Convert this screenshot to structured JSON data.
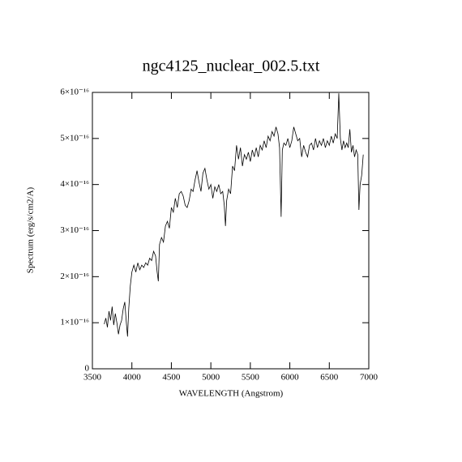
{
  "chart_data": {
    "type": "line",
    "title": "ngc4125_nuclear_002.5.txt",
    "x_label": "WAVELENGTH (Angstrom)",
    "y_label": "Spectrum (erg/s/cm2/A)",
    "xlim": [
      3500,
      7000
    ],
    "xticks": [
      3500,
      4000,
      4500,
      5000,
      5500,
      6000,
      6500,
      7000
    ],
    "ylim": [
      0,
      6e-16
    ],
    "yticks": [
      0,
      {
        "value": 1e-16,
        "label": "1×10⁻¹⁶"
      },
      {
        "value": 2e-16,
        "label": "2×10⁻¹⁶"
      },
      {
        "value": 3e-16,
        "label": "3×10⁻¹⁶"
      },
      {
        "value": 4e-16,
        "label": "4×10⁻¹⁶"
      },
      {
        "value": 5e-16,
        "label": "5×10⁻¹⁶"
      },
      {
        "value": 6e-16,
        "label": "6×10⁻¹⁶"
      }
    ],
    "color": "#000000",
    "x": [
      3650,
      3670,
      3690,
      3710,
      3730,
      3750,
      3770,
      3790,
      3810,
      3830,
      3850,
      3870,
      3890,
      3910,
      3930,
      3945,
      3960,
      3980,
      4000,
      4025,
      4050,
      4075,
      4100,
      4125,
      4150,
      4175,
      4200,
      4225,
      4250,
      4275,
      4300,
      4320,
      4335,
      4350,
      4375,
      4400,
      4425,
      4450,
      4475,
      4500,
      4525,
      4550,
      4575,
      4600,
      4625,
      4650,
      4675,
      4700,
      4725,
      4750,
      4775,
      4800,
      4825,
      4850,
      4875,
      4900,
      4925,
      4950,
      4975,
      5000,
      5025,
      5050,
      5075,
      5100,
      5125,
      5150,
      5170,
      5185,
      5200,
      5225,
      5250,
      5275,
      5300,
      5325,
      5350,
      5375,
      5400,
      5425,
      5450,
      5475,
      5500,
      5525,
      5550,
      5575,
      5600,
      5625,
      5650,
      5675,
      5700,
      5725,
      5750,
      5775,
      5800,
      5825,
      5850,
      5870,
      5890,
      5905,
      5925,
      5950,
      5975,
      6000,
      6025,
      6050,
      6075,
      6100,
      6125,
      6150,
      6175,
      6200,
      6225,
      6250,
      6275,
      6300,
      6325,
      6350,
      6375,
      6400,
      6425,
      6450,
      6475,
      6500,
      6525,
      6550,
      6575,
      6600,
      6620,
      6640,
      6660,
      6680,
      6700,
      6720,
      6740,
      6760,
      6780,
      6800,
      6820,
      6840,
      6860,
      6875,
      6890,
      6910,
      6930
    ],
    "values": [
      9.7e-17,
      1.1e-16,
      9e-17,
      1.25e-16,
      1.05e-16,
      1.35e-16,
      9.5e-17,
      1.2e-16,
      1e-16,
      7.5e-17,
      9.5e-17,
      1.05e-16,
      1.3e-16,
      1.45e-16,
      1e-16,
      7e-17,
      1.3e-16,
      1.8e-16,
      2.1e-16,
      2.25e-16,
      2.1e-16,
      2.3e-16,
      2.15e-16,
      2.25e-16,
      2.2e-16,
      2.3e-16,
      2.25e-16,
      2.4e-16,
      2.35e-16,
      2.55e-16,
      2.45e-16,
      2.1e-16,
      1.9e-16,
      2.7e-16,
      2.85e-16,
      2.75e-16,
      3.1e-16,
      3.2e-16,
      3.05e-16,
      3.5e-16,
      3.4e-16,
      3.7e-16,
      3.5e-16,
      3.8e-16,
      3.85e-16,
      3.75e-16,
      3.55e-16,
      3.5e-16,
      3.65e-16,
      3.9e-16,
      3.85e-16,
      4.1e-16,
      4.3e-16,
      4.05e-16,
      3.85e-16,
      4.25e-16,
      4.35e-16,
      4.1e-16,
      3.9e-16,
      4e-16,
      3.7e-16,
      3.95e-16,
      3.85e-16,
      4e-16,
      3.8e-16,
      3.85e-16,
      3.55e-16,
      3.1e-16,
      3.65e-16,
      3.9e-16,
      3.8e-16,
      4.4e-16,
      4.3e-16,
      4.85e-16,
      4.55e-16,
      4.8e-16,
      4.4e-16,
      4.65e-16,
      4.55e-16,
      4.7e-16,
      4.5e-16,
      4.75e-16,
      4.6e-16,
      4.8e-16,
      4.6e-16,
      4.85e-16,
      4.75e-16,
      4.95e-16,
      4.8e-16,
      5.05e-16,
      4.95e-16,
      5.15e-16,
      5.05e-16,
      5.25e-16,
      5.1e-16,
      4.8e-16,
      3.3e-16,
      4.75e-16,
      4.9e-16,
      4.85e-16,
      5e-16,
      4.8e-16,
      4.95e-16,
      5.25e-16,
      5.1e-16,
      4.95e-16,
      5e-16,
      4.6e-16,
      4.85e-16,
      4.7e-16,
      4.6e-16,
      4.85e-16,
      4.9e-16,
      4.75e-16,
      5e-16,
      4.8e-16,
      4.95e-16,
      4.85e-16,
      5e-16,
      4.8e-16,
      4.95e-16,
      4.85e-16,
      5.05e-16,
      4.9e-16,
      5.1e-16,
      5e-16,
      5.98e-16,
      5e-16,
      4.75e-16,
      4.95e-16,
      4.8e-16,
      4.9e-16,
      4.8e-16,
      5.2e-16,
      4.7e-16,
      4.85e-16,
      4.6e-16,
      4.75e-16,
      4.65e-16,
      3.45e-16,
      4e-16,
      4.2e-16,
      4.65e-16
    ]
  }
}
